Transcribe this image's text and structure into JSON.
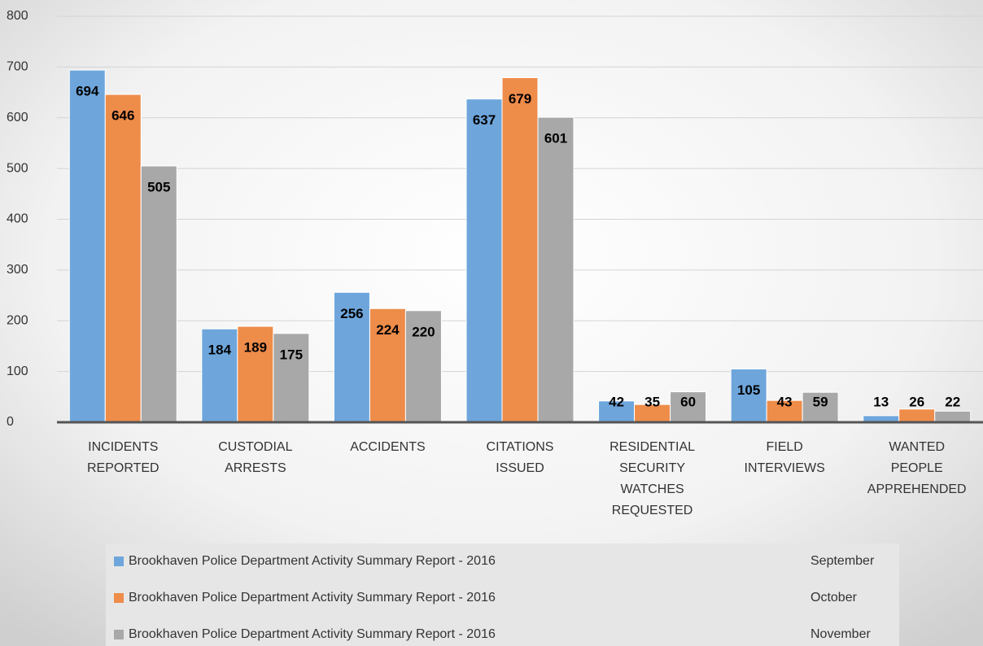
{
  "chart_data": {
    "type": "bar",
    "categories": [
      "INCIDENTS REPORTED",
      "CUSTODIAL ARRESTS",
      "ACCIDENTS",
      "CITATIONS ISSUED",
      "RESIDENTIAL SECURITY WATCHES REQUESTED",
      "FIELD INTERVIEWS",
      "WANTED PEOPLE APPREHENDED"
    ],
    "series": [
      {
        "name": "Brookhaven Police Department Activity Summary Report - 2016",
        "month": "September",
        "color": "#6ea6dc",
        "values": [
          694,
          184,
          256,
          637,
          42,
          105,
          13
        ]
      },
      {
        "name": "Brookhaven Police Department Activity Summary Report - 2016",
        "month": "October",
        "color": "#ee8c4a",
        "values": [
          646,
          189,
          224,
          679,
          35,
          43,
          26
        ]
      },
      {
        "name": "Brookhaven Police Department Activity Summary Report - 2016",
        "month": "November",
        "color": "#a8a8a8",
        "values": [
          505,
          175,
          220,
          601,
          60,
          59,
          22
        ]
      }
    ],
    "ylim": [
      0,
      800
    ],
    "yticks": [
      0,
      100,
      200,
      300,
      400,
      500,
      600,
      700,
      800
    ],
    "grid": true
  }
}
